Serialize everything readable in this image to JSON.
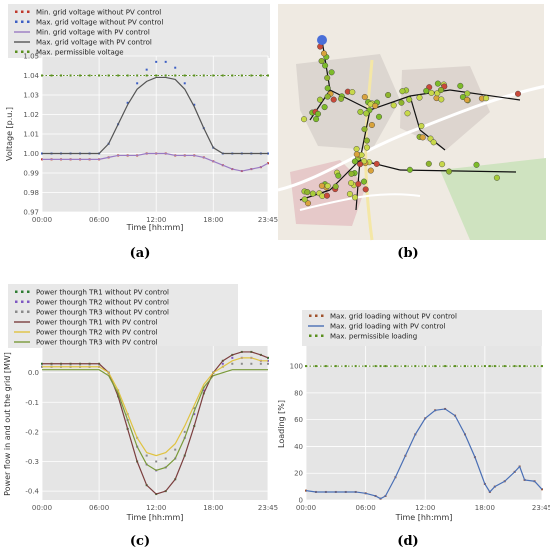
{
  "chart_data": [
    {
      "type": "line",
      "panel_label": "(a)",
      "xlabel": "Time [hh:mm]",
      "ylabel": "Voltage [p.u.]",
      "xticks": [
        "00:00",
        "06:00",
        "12:00",
        "18:00",
        "23:45"
      ],
      "yticks": [
        "0.97",
        "0.98",
        "0.99",
        "1.00",
        "1.01",
        "1.02",
        "1.03",
        "1.04",
        "1.05"
      ],
      "xlim": [
        0,
        23.75
      ],
      "ylim": [
        0.97,
        1.05
      ],
      "grid": true,
      "legend_position": "top",
      "x": [
        0,
        1,
        2,
        3,
        4,
        5,
        6,
        7,
        8,
        9,
        10,
        11,
        12,
        13,
        14,
        15,
        16,
        17,
        18,
        19,
        20,
        21,
        22,
        23,
        23.75
      ],
      "series": [
        {
          "name": "Min. grid voltage without PV control",
          "style": "dotted",
          "color": "#c0392b",
          "values": [
            0.997,
            0.997,
            0.997,
            0.997,
            0.997,
            0.997,
            0.997,
            0.998,
            0.999,
            0.999,
            0.999,
            1.0,
            1.0,
            1.0,
            0.999,
            0.999,
            0.999,
            0.998,
            0.996,
            0.994,
            0.992,
            0.991,
            0.992,
            0.993,
            0.995
          ]
        },
        {
          "name": "Max. grid voltage without PV control",
          "style": "dotted",
          "color": "#3d5fc4",
          "values": [
            1.0,
            1.0,
            1.0,
            1.0,
            1.0,
            1.0,
            1.0,
            1.005,
            1.015,
            1.026,
            1.036,
            1.043,
            1.047,
            1.047,
            1.044,
            1.036,
            1.025,
            1.013,
            1.003,
            1.0,
            1.0,
            1.0,
            1.0,
            1.0,
            1.0
          ]
        },
        {
          "name": "Min. grid voltage with PV control",
          "style": "solid",
          "color": "#9b7bc4",
          "values": [
            0.997,
            0.997,
            0.997,
            0.997,
            0.997,
            0.997,
            0.997,
            0.998,
            0.999,
            0.999,
            0.999,
            1.0,
            1.0,
            1.0,
            0.999,
            0.999,
            0.999,
            0.998,
            0.996,
            0.994,
            0.992,
            0.991,
            0.992,
            0.993,
            0.995
          ]
        },
        {
          "name": "Max. grid voltage with PV control",
          "style": "solid",
          "color": "#555555",
          "values": [
            1.0,
            1.0,
            1.0,
            1.0,
            1.0,
            1.0,
            1.0,
            1.005,
            1.015,
            1.025,
            1.033,
            1.037,
            1.039,
            1.039,
            1.038,
            1.033,
            1.024,
            1.013,
            1.003,
            1.0,
            1.0,
            1.0,
            1.0,
            1.0,
            1.0
          ]
        },
        {
          "name": "Max. permissible voltage",
          "style": "dotted",
          "color": "#5a8f1e",
          "values": [
            1.04,
            1.04,
            1.04,
            1.04,
            1.04,
            1.04,
            1.04,
            1.04,
            1.04,
            1.04,
            1.04,
            1.04,
            1.04,
            1.04,
            1.04,
            1.04,
            1.04,
            1.04,
            1.04,
            1.04,
            1.04,
            1.04,
            1.04,
            1.04,
            1.04
          ]
        }
      ]
    },
    {
      "type": "line",
      "panel_label": "(c)",
      "xlabel": "Time [hh:mm]",
      "ylabel": "Power flow in and out the grid [MW]",
      "xticks": [
        "00:00",
        "06:00",
        "12:00",
        "18:00",
        "23:45"
      ],
      "yticks": [
        "-0.4",
        "-0.3",
        "-0.2",
        "-0.1",
        "0.0"
      ],
      "xlim": [
        0,
        23.75
      ],
      "ylim": [
        -0.43,
        0.09
      ],
      "grid": true,
      "legend_position": "top",
      "x": [
        0,
        1,
        2,
        3,
        4,
        5,
        6,
        7,
        8,
        9,
        10,
        11,
        12,
        13,
        14,
        15,
        16,
        17,
        18,
        19,
        20,
        21,
        22,
        23,
        23.75
      ],
      "series": [
        {
          "name": "Power thourgh TR1 without PV control",
          "style": "dotted",
          "color": "#2e7d32",
          "values": [
            0.03,
            0.03,
            0.03,
            0.03,
            0.03,
            0.03,
            0.03,
            0.0,
            -0.08,
            -0.19,
            -0.3,
            -0.38,
            -0.41,
            -0.4,
            -0.36,
            -0.28,
            -0.18,
            -0.07,
            0.0,
            0.04,
            0.06,
            0.07,
            0.07,
            0.06,
            0.05
          ]
        },
        {
          "name": "Power thourgh TR2 without PV control",
          "style": "dotted",
          "color": "#7e57c2",
          "values": [
            0.02,
            0.02,
            0.02,
            0.02,
            0.02,
            0.02,
            0.02,
            0.0,
            -0.07,
            -0.16,
            -0.25,
            -0.31,
            -0.33,
            -0.32,
            -0.29,
            -0.22,
            -0.14,
            -0.06,
            0.0,
            0.03,
            0.05,
            0.05,
            0.05,
            0.04,
            0.04
          ]
        },
        {
          "name": "Power thourgh TR3 without PV control",
          "style": "dotted",
          "color": "#8a8a8a",
          "values": [
            0.02,
            0.02,
            0.02,
            0.02,
            0.02,
            0.02,
            0.02,
            0.0,
            -0.06,
            -0.14,
            -0.22,
            -0.28,
            -0.3,
            -0.29,
            -0.26,
            -0.2,
            -0.12,
            -0.05,
            0.0,
            0.02,
            0.03,
            0.03,
            0.03,
            0.03,
            0.03
          ]
        },
        {
          "name": "Power thourgh TR1 with PV control",
          "style": "solid",
          "color": "#7b3f3f",
          "values": [
            0.03,
            0.03,
            0.03,
            0.03,
            0.03,
            0.03,
            0.03,
            0.0,
            -0.08,
            -0.19,
            -0.3,
            -0.38,
            -0.41,
            -0.4,
            -0.36,
            -0.28,
            -0.18,
            -0.07,
            0.0,
            0.04,
            0.06,
            0.07,
            0.07,
            0.06,
            0.05
          ]
        },
        {
          "name": "Power thourgh TR2 with PV control",
          "style": "solid",
          "color": "#e0c341",
          "values": [
            0.02,
            0.02,
            0.02,
            0.02,
            0.02,
            0.02,
            0.02,
            0.0,
            -0.06,
            -0.14,
            -0.22,
            -0.27,
            -0.28,
            -0.27,
            -0.24,
            -0.18,
            -0.11,
            -0.04,
            0.0,
            0.02,
            0.04,
            0.05,
            0.05,
            0.04,
            0.04
          ]
        },
        {
          "name": "Power thourgh TR3 with PV control",
          "style": "solid",
          "color": "#7a9a3a",
          "values": [
            0.01,
            0.01,
            0.01,
            0.01,
            0.01,
            0.01,
            0.01,
            -0.01,
            -0.07,
            -0.16,
            -0.25,
            -0.31,
            -0.33,
            -0.32,
            -0.29,
            -0.22,
            -0.13,
            -0.05,
            -0.01,
            0.0,
            0.01,
            0.01,
            0.01,
            0.01,
            0.01
          ]
        }
      ]
    },
    {
      "type": "line",
      "panel_label": "(d)",
      "xlabel": "Time [hh:mm]",
      "ylabel": "Loading [%]",
      "xticks": [
        "00:00",
        "06:00",
        "12:00",
        "18:00",
        "23:45"
      ],
      "yticks": [
        "0",
        "20",
        "40",
        "60",
        "80",
        "100"
      ],
      "xlim": [
        0,
        23.75
      ],
      "ylim": [
        0,
        115
      ],
      "grid": true,
      "legend_position": "top",
      "x": [
        0,
        1,
        2,
        3,
        4,
        5,
        6,
        7,
        7.5,
        8,
        9,
        10,
        11,
        12,
        13,
        14,
        15,
        16,
        17,
        18,
        18.5,
        19,
        20,
        21,
        21.5,
        22,
        23,
        23.75
      ],
      "series": [
        {
          "name": "Max. grid loading without PV control",
          "style": "dotted",
          "color": "#a0522d",
          "values": [
            7,
            6,
            6,
            6,
            6,
            6,
            5,
            3,
            1,
            3,
            17,
            33,
            49,
            61,
            67,
            68,
            63,
            49,
            32,
            12,
            6,
            10,
            14,
            21,
            25,
            15,
            14,
            8
          ]
        },
        {
          "name": "Max. grid loading with PV control",
          "style": "solid",
          "color": "#4a6fb5",
          "values": [
            7,
            6,
            6,
            6,
            6,
            6,
            5,
            3,
            1,
            3,
            17,
            33,
            49,
            61,
            67,
            68,
            63,
            49,
            32,
            12,
            6,
            10,
            14,
            21,
            25,
            15,
            14,
            8
          ]
        },
        {
          "name": "Max. permissible loading",
          "style": "dotted",
          "color": "#5a8f1e",
          "values": [
            100,
            100,
            100,
            100,
            100,
            100,
            100,
            100,
            100,
            100,
            100,
            100,
            100,
            100,
            100,
            100,
            100,
            100,
            100,
            100,
            100,
            100,
            100,
            100,
            100,
            100,
            100,
            100
          ]
        }
      ]
    }
  ],
  "map_panel": {
    "panel_label": "(b)"
  }
}
